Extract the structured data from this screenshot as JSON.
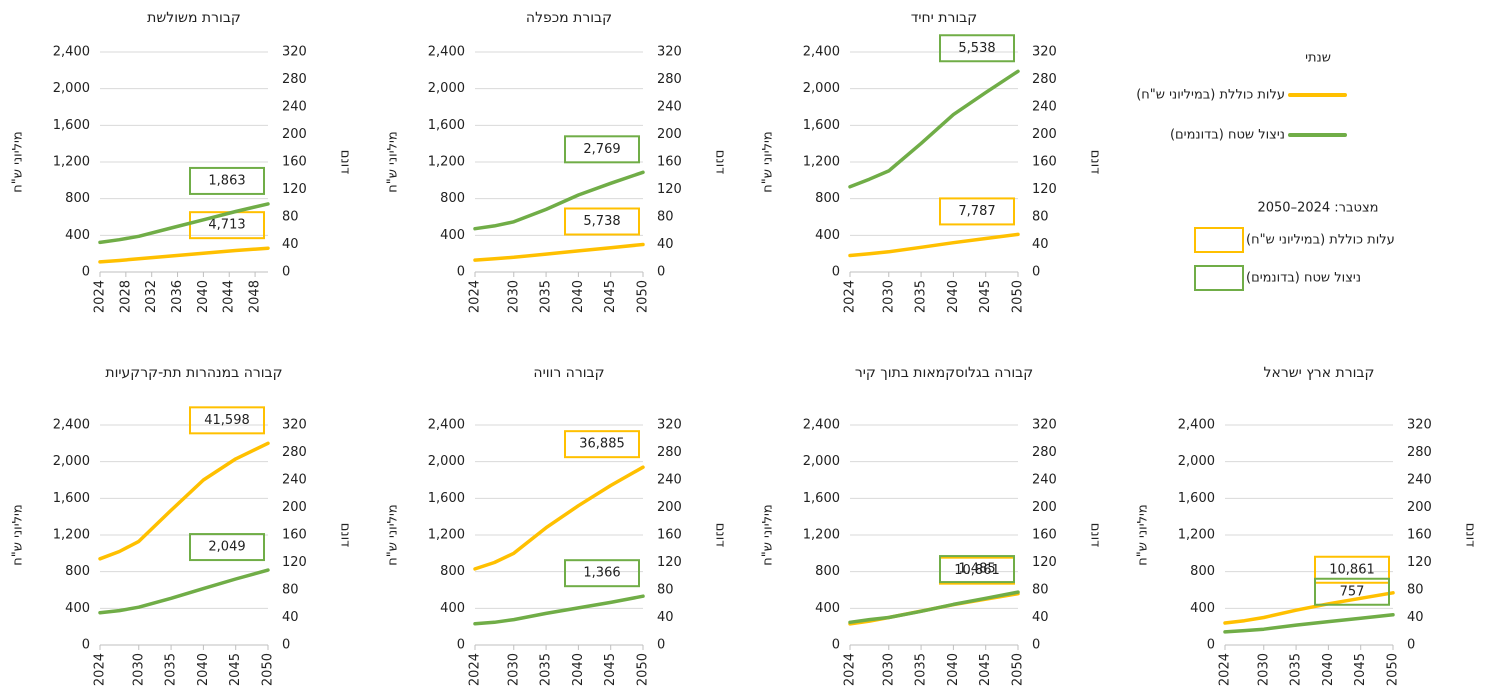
{
  "legend": {
    "annual": "שנתי",
    "cumulative": "מצטבר: 2024–2050"
  },
  "chart_data": [
    {
      "type": "line",
      "title": "קבורת משולשת",
      "ylabel": "מיליוני ש\"ח",
      "y2label": "דונם",
      "x": [
        2024,
        2027,
        2030,
        2035,
        2040,
        2045,
        2050
      ],
      "xlim": [
        2024,
        2050
      ],
      "xticks": [
        2024,
        2028,
        2032,
        2036,
        2040,
        2044,
        2048
      ],
      "ylim": [
        0,
        2400
      ],
      "yticks": [
        0,
        400,
        800,
        {
          "value": 1200,
          "label": "1,200"
        },
        {
          "value": 1600,
          "label": "1,600"
        },
        {
          "value": 2000,
          "label": "2,000"
        },
        {
          "value": 2400,
          "label": "2,400"
        }
      ],
      "y2lim": [
        0,
        320
      ],
      "y2ticks": [
        0,
        40,
        80,
        120,
        160,
        200,
        240,
        280,
        320
      ],
      "grid": true,
      "series": [
        {
          "name": "עלות כוללת (במיליוני ש\"ח)",
          "color": "#ffc000",
          "values": [
            110,
            125,
            145,
            175,
            205,
            235,
            260
          ],
          "total": 4713,
          "total_label": "4,713"
        },
        {
          "name": "ניצול שטח (בדונמים)",
          "color": "#70ad47",
          "axis": "y2",
          "values": [
            43,
            47,
            52,
            64,
            76,
            88,
            99
          ],
          "total": 1863,
          "total_label": "1,863"
        }
      ]
    },
    {
      "type": "line",
      "title": "קבורת מכפלה",
      "ylabel": "מיליוני ש\"ח",
      "y2label": "דונם",
      "x": [
        2024,
        2027,
        2030,
        2035,
        2040,
        2045,
        2050
      ],
      "xlim": [
        2024,
        2050
      ],
      "xticks": [
        2024,
        2030,
        2035,
        2040,
        2045,
        2050
      ],
      "ylim": [
        0,
        2400
      ],
      "yticks": [
        0,
        400,
        800,
        {
          "value": 1200,
          "label": "1,200"
        },
        {
          "value": 1600,
          "label": "1,600"
        },
        {
          "value": 2000,
          "label": "2,000"
        },
        {
          "value": 2400,
          "label": "2,400"
        }
      ],
      "y2lim": [
        0,
        320
      ],
      "y2ticks": [
        0,
        40,
        80,
        120,
        160,
        200,
        240,
        280,
        320
      ],
      "grid": true,
      "series": [
        {
          "name": "עלות כוללת (במיליוני ש\"ח)",
          "color": "#ffc000",
          "values": [
            130,
            145,
            160,
            195,
            230,
            265,
            300
          ],
          "total": 5738,
          "total_label": "5,738"
        },
        {
          "name": "ניצול שטח (בדונמים)",
          "color": "#70ad47",
          "axis": "y2",
          "values": [
            63,
            67,
            73,
            91,
            112,
            129,
            145
          ],
          "total": 2769,
          "total_label": "2,769"
        }
      ]
    },
    {
      "type": "line",
      "title": "קבורת יחיד",
      "ylabel": "מיליוני ש\"ח",
      "y2label": "דונם",
      "x": [
        2024,
        2027,
        2030,
        2035,
        2040,
        2045,
        2050
      ],
      "xlim": [
        2024,
        2050
      ],
      "xticks": [
        2024,
        2030,
        2035,
        2040,
        2045,
        2050
      ],
      "ylim": [
        0,
        2400
      ],
      "yticks": [
        0,
        400,
        800,
        {
          "value": 1200,
          "label": "1,200"
        },
        {
          "value": 1600,
          "label": "1,600"
        },
        {
          "value": 2000,
          "label": "2,000"
        },
        {
          "value": 2400,
          "label": "2,400"
        }
      ],
      "y2lim": [
        0,
        320
      ],
      "y2ticks": [
        0,
        40,
        80,
        120,
        160,
        200,
        240,
        280,
        320
      ],
      "grid": true,
      "series": [
        {
          "name": "עלות כוללת (במיליוני ש\"ח)",
          "color": "#ffc000",
          "values": [
            180,
            200,
            220,
            270,
            320,
            365,
            410
          ],
          "total": 7787,
          "total_label": "7,787"
        },
        {
          "name": "ניצול שטח (בדונמים)",
          "color": "#70ad47",
          "axis": "y2",
          "values": [
            124,
            135,
            147,
            187,
            229,
            261,
            292
          ],
          "total": 5538,
          "total_label": "5,538"
        }
      ]
    },
    {
      "type": "line",
      "title": "קבורה במנהרות תת-קרקעיות",
      "ylabel": "מיליוני ש\"ח",
      "y2label": "דונם",
      "x": [
        2024,
        2027,
        2030,
        2035,
        2040,
        2045,
        2050
      ],
      "xlim": [
        2024,
        2050
      ],
      "xticks": [
        2024,
        2030,
        2035,
        2040,
        2045,
        2050
      ],
      "ylim": [
        0,
        2400
      ],
      "yticks": [
        0,
        400,
        800,
        {
          "value": 1200,
          "label": "1,200"
        },
        {
          "value": 1600,
          "label": "1,600"
        },
        {
          "value": 2000,
          "label": "2,000"
        },
        {
          "value": 2400,
          "label": "2,400"
        }
      ],
      "y2lim": [
        0,
        320
      ],
      "y2ticks": [
        0,
        40,
        80,
        120,
        160,
        200,
        240,
        280,
        320
      ],
      "grid": true,
      "series": [
        {
          "name": "עלות כוללת (במיליוני ש\"ח)",
          "color": "#ffc000",
          "values": [
            940,
            1020,
            1130,
            1470,
            1800,
            2030,
            2200
          ],
          "total": 41598,
          "total_label": "41,598"
        },
        {
          "name": "ניצול שטח (בדונמים)",
          "color": "#70ad47",
          "axis": "y2",
          "values": [
            47,
            50,
            55,
            68,
            82,
            96,
            109
          ],
          "total": 2049,
          "total_label": "2,049"
        }
      ]
    },
    {
      "type": "line",
      "title": "קבורה רוויה",
      "ylabel": "מיליוני ש\"ח",
      "y2label": "דונם",
      "x": [
        2024,
        2027,
        2030,
        2035,
        2040,
        2045,
        2050
      ],
      "xlim": [
        2024,
        2050
      ],
      "xticks": [
        2024,
        2030,
        2035,
        2040,
        2045,
        2050
      ],
      "ylim": [
        0,
        2400
      ],
      "yticks": [
        0,
        400,
        800,
        {
          "value": 1200,
          "label": "1,200"
        },
        {
          "value": 1600,
          "label": "1,600"
        },
        {
          "value": 2000,
          "label": "2,000"
        },
        {
          "value": 2400,
          "label": "2,400"
        }
      ],
      "y2lim": [
        0,
        320
      ],
      "y2ticks": [
        0,
        40,
        80,
        120,
        160,
        200,
        240,
        280,
        320
      ],
      "grid": true,
      "series": [
        {
          "name": "עלות כוללת (במיליוני ש\"ח)",
          "color": "#ffc000",
          "values": [
            830,
            900,
            1000,
            1280,
            1520,
            1740,
            1940
          ],
          "total": 36885,
          "total_label": "36,885"
        },
        {
          "name": "ניצול שטח (בדונמים)",
          "color": "#70ad47",
          "axis": "y2",
          "values": [
            31,
            33,
            37,
            46,
            54,
            62,
            71
          ],
          "total": 1366,
          "total_label": "1,366"
        }
      ]
    },
    {
      "type": "line",
      "title": "קבורה בגלוסקמאות בתוך קיר",
      "ylabel": "מיליוני ש\"ח",
      "y2label": "דונם",
      "x": [
        2024,
        2027,
        2030,
        2035,
        2040,
        2045,
        2050
      ],
      "xlim": [
        2024,
        2050
      ],
      "xticks": [
        2024,
        2030,
        2035,
        2040,
        2045,
        2050
      ],
      "ylim": [
        0,
        2400
      ],
      "yticks": [
        0,
        400,
        800,
        {
          "value": 1200,
          "label": "1,200"
        },
        {
          "value": 1600,
          "label": "1,600"
        },
        {
          "value": 2000,
          "label": "2,000"
        },
        {
          "value": 2400,
          "label": "2,400"
        }
      ],
      "y2lim": [
        0,
        320
      ],
      "y2ticks": [
        0,
        40,
        80,
        120,
        160,
        200,
        240,
        280,
        320
      ],
      "grid": true,
      "series": [
        {
          "name": "עלות כוללת (במיליוני ש\"ח)",
          "color": "#ffc000",
          "values": [
            230,
            260,
            300,
            370,
            440,
            500,
            560
          ],
          "total": 10861,
          "total_label": "10,861"
        },
        {
          "name": "ניצול שטח (בדונמים)",
          "color": "#70ad47",
          "axis": "y2",
          "values": [
            33,
            37,
            40,
            49,
            59,
            68,
            77
          ],
          "total": 1485,
          "total_label": "1,485"
        }
      ]
    },
    {
      "type": "line",
      "title": "קבורת ארץ ישראל",
      "ylabel": "מיליוני ש\"ח",
      "y2label": "דונם",
      "x": [
        2024,
        2027,
        2030,
        2035,
        2040,
        2045,
        2050
      ],
      "xlim": [
        2024,
        2050
      ],
      "xticks": [
        2024,
        2030,
        2035,
        2040,
        2045,
        2050
      ],
      "ylim": [
        0,
        2400
      ],
      "yticks": [
        0,
        400,
        800,
        {
          "value": 1200,
          "label": "1,200"
        },
        {
          "value": 1600,
          "label": "1,600"
        },
        {
          "value": 2000,
          "label": "2,000"
        },
        {
          "value": 2400,
          "label": "2,400"
        }
      ],
      "y2lim": [
        0,
        320
      ],
      "y2ticks": [
        0,
        40,
        80,
        120,
        160,
        200,
        240,
        280,
        320
      ],
      "grid": true,
      "series": [
        {
          "name": "עלות כוללת (במיליוני ש\"ח)",
          "color": "#ffc000",
          "values": [
            240,
            265,
            300,
            380,
            450,
            510,
            570
          ],
          "total": 10861,
          "total_label": "10,861"
        },
        {
          "name": "ניצול שטח (בדונמים)",
          "color": "#70ad47",
          "axis": "y2",
          "values": [
            19,
            21,
            23,
            29,
            34,
            39,
            44
          ],
          "total": 757,
          "total_label": "757"
        }
      ]
    }
  ]
}
